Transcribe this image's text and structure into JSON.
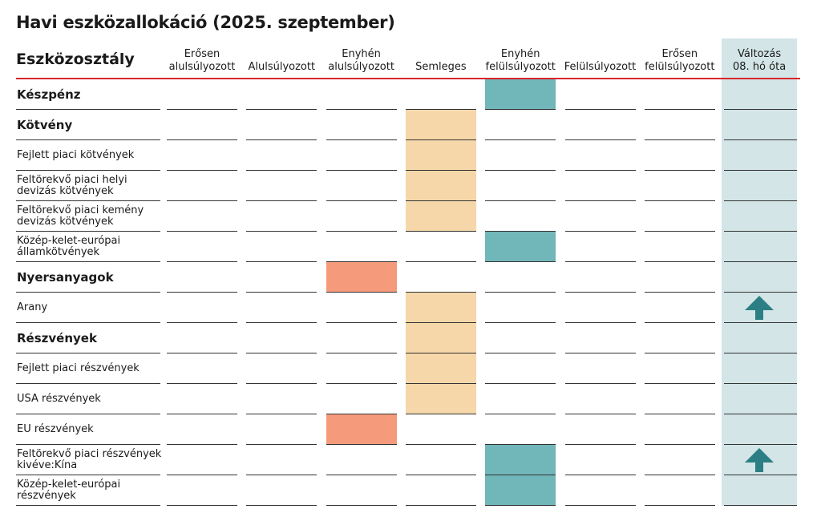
{
  "title": "Havi eszközallokáció (2025. szeptember)",
  "header_label": "Eszközosztály",
  "colors": {
    "neutral": "#f5d7a9",
    "underweight": "#f59b7c",
    "overweight": "#71b6b9",
    "change_column": "#d3e5e6",
    "header_line": "#d7262e",
    "arrow": "#2b7f84"
  },
  "chart_data": {
    "type": "table",
    "columns": [
      "Erősen\nalulsúlyozott",
      "Alulsúlyozott",
      "Enyhén\nalulsúlyozott",
      "Semleges",
      "Enyhén\nfelülsúlyozott",
      "Felülsúlyozott",
      "Erősen\nfelülsúlyozott",
      "Változás\n08. hó óta"
    ],
    "rows": [
      {
        "label": "Készpénz",
        "bold": true,
        "position": 4,
        "change": ""
      },
      {
        "label": "Kötvény",
        "bold": true,
        "position": 3,
        "change": ""
      },
      {
        "label": "Fejlett piaci kötvények",
        "bold": false,
        "position": 3,
        "change": ""
      },
      {
        "label": "Feltörekvő piaci helyi\ndevizás kötvények",
        "bold": false,
        "position": 3,
        "change": ""
      },
      {
        "label": "Feltörekvő piaci kemény\ndevizás kötvények",
        "bold": false,
        "position": 3,
        "change": ""
      },
      {
        "label": "Közép-kelet-európai\nállamkötvények",
        "bold": false,
        "position": 4,
        "change": ""
      },
      {
        "label": "Nyersanyagok",
        "bold": true,
        "position": 2,
        "change": ""
      },
      {
        "label": "Arany",
        "bold": false,
        "position": 3,
        "change": "up"
      },
      {
        "label": "Részvények",
        "bold": true,
        "position": 3,
        "change": ""
      },
      {
        "label": "Fejlett piaci részvények",
        "bold": false,
        "position": 3,
        "change": ""
      },
      {
        "label": "USA részvények",
        "bold": false,
        "position": 3,
        "change": ""
      },
      {
        "label": "EU részvények",
        "bold": false,
        "position": 2,
        "change": ""
      },
      {
        "label": "Feltörekvő piaci részvények\nkivéve:Kína",
        "bold": false,
        "position": 4,
        "change": "up"
      },
      {
        "label": "Közép-kelet-európai\nrészvények",
        "bold": false,
        "position": 4,
        "change": ""
      }
    ]
  }
}
